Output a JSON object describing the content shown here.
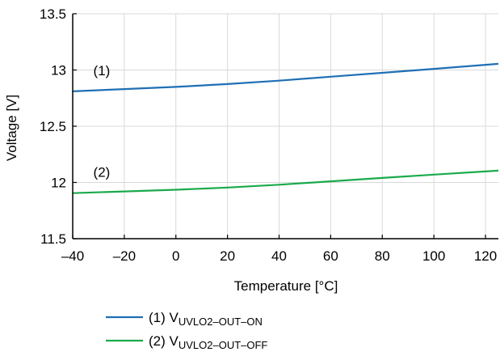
{
  "chart_data": {
    "type": "line",
    "xlabel": "Temperature [°C]",
    "ylabel": "Voltage [V]",
    "xlim": [
      -40,
      125
    ],
    "ylim": [
      11.5,
      13.5
    ],
    "xticks": [
      -40,
      -20,
      0,
      20,
      40,
      60,
      80,
      100,
      120
    ],
    "xtick_labels": [
      "–40",
      "–20",
      "0",
      "20",
      "40",
      "60",
      "80",
      "100",
      "120"
    ],
    "yticks": [
      11.5,
      12,
      12.5,
      13,
      13.5
    ],
    "ytick_labels": [
      "11.5",
      "12",
      "12.5",
      "13",
      "13.5"
    ],
    "grid": true,
    "legend_position": "bottom",
    "series": [
      {
        "name": "(1) VUVLO2–OUT–ON",
        "legend_prefix": "(1) V",
        "legend_sub": "UVLO2–OUT–ON",
        "curve_label": "(1)",
        "color": "#1f6fb5",
        "x": [
          -40,
          -20,
          0,
          20,
          40,
          60,
          80,
          100,
          125
        ],
        "y": [
          12.81,
          12.83,
          12.85,
          12.875,
          12.905,
          12.94,
          12.975,
          13.01,
          13.055
        ]
      },
      {
        "name": "(2) VUVLO2–OUT–OFF",
        "legend_prefix": "(2) V",
        "legend_sub": "UVLO2–OUT–OFF",
        "curve_label": "(2)",
        "color": "#1aaa4b",
        "x": [
          -40,
          -20,
          0,
          20,
          40,
          60,
          80,
          100,
          125
        ],
        "y": [
          11.905,
          11.92,
          11.935,
          11.955,
          11.98,
          12.01,
          12.04,
          12.07,
          12.105
        ]
      }
    ]
  }
}
